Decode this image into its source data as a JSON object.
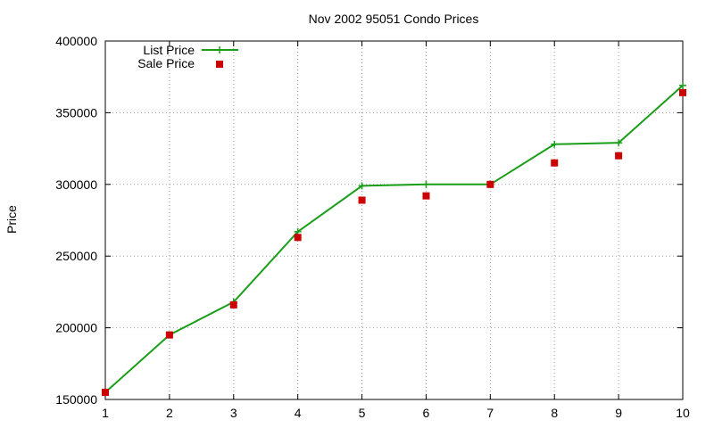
{
  "chart_data": {
    "type": "line",
    "title": "Nov 2002 95051 Condo Prices",
    "xlabel": "",
    "ylabel": "Price",
    "xlim": [
      1,
      10
    ],
    "ylim": [
      150000,
      400000
    ],
    "x_ticks": [
      1,
      2,
      3,
      4,
      5,
      6,
      7,
      8,
      9,
      10
    ],
    "y_ticks": [
      150000,
      200000,
      250000,
      300000,
      350000,
      400000
    ],
    "grid": true,
    "legend_position": "top-left",
    "x": [
      1,
      2,
      3,
      4,
      5,
      6,
      7,
      8,
      9,
      10
    ],
    "series": [
      {
        "name": "List Price",
        "style": "line-with-plus-markers",
        "color": "#1a9e1a",
        "values": [
          155000,
          195000,
          218000,
          267000,
          299000,
          300000,
          300000,
          328000,
          329000,
          369000
        ]
      },
      {
        "name": "Sale Price",
        "style": "square-markers",
        "color": "#cc0000",
        "values": [
          155000,
          195000,
          216000,
          263000,
          289000,
          292000,
          300000,
          315000,
          320000,
          364000
        ]
      }
    ]
  }
}
